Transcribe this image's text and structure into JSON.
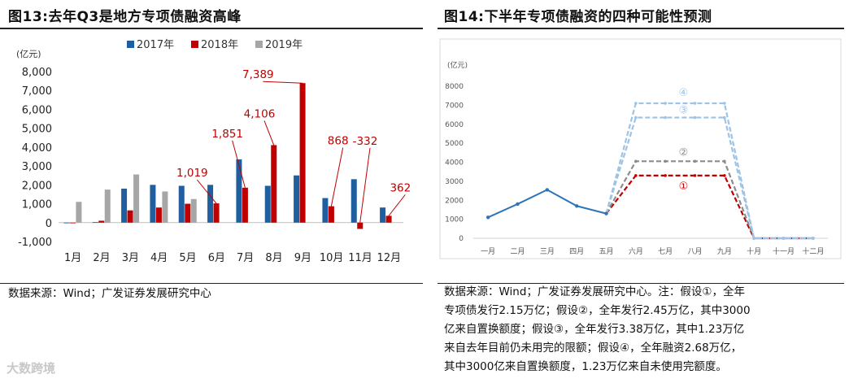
{
  "left": {
    "title": "图13:去年Q3是地方专项债融资高峰",
    "source": "数据来源：Wind；广发证券发展研究中心",
    "chart_data": {
      "type": "bar",
      "title": "图13:去年Q3是地方专项债融资高峰",
      "ylabel": "(亿元)",
      "ylim": [
        -1000,
        8000
      ],
      "yticks": [
        "8,000",
        "7,000",
        "6,000",
        "5,000",
        "4,000",
        "3,000",
        "2,000",
        "1,000",
        "0",
        "-1,000"
      ],
      "legend_position": "top",
      "categories": [
        "1月",
        "2月",
        "3月",
        "4月",
        "5月",
        "6月",
        "7月",
        "8月",
        "9月",
        "10月",
        "11月",
        "12月"
      ],
      "series": [
        {
          "name": "2017年",
          "color": "#1f5fa0",
          "values": [
            0,
            30,
            1800,
            2000,
            1950,
            2000,
            3350,
            1950,
            2500,
            1300,
            2300,
            800
          ]
        },
        {
          "name": "2018年",
          "color": "#c00000",
          "values": [
            0,
            100,
            650,
            800,
            1000,
            1019,
            1851,
            4106,
            7389,
            868,
            -332,
            362
          ]
        },
        {
          "name": "2019年",
          "color": "#a6a6a6",
          "values": [
            1100,
            1750,
            2550,
            1650,
            1250,
            null,
            null,
            null,
            null,
            null,
            null,
            null
          ]
        }
      ],
      "annotations": [
        {
          "category": "6月",
          "text": "1,019"
        },
        {
          "category": "7月",
          "text": "1,851"
        },
        {
          "category": "8月",
          "text": "4,106"
        },
        {
          "category": "9月",
          "text": "7,389"
        },
        {
          "category": "10月",
          "text": "868"
        },
        {
          "category": "11月",
          "text": "-332"
        },
        {
          "category": "12月",
          "text": "362"
        }
      ]
    }
  },
  "right": {
    "title": "图14:下半年专项债融资的四种可能性预测",
    "source_lines": [
      "数据来源：Wind；广发证券发展研究中心。注：假设①，全年",
      "专项债发行2.15万亿；假设②，全年发行2.45万亿，其中3000",
      "亿来自置换额度；假设③，全年发行3.38万亿，其中1.23万亿",
      "来自去年目前仍未用完的限额；假设④，全年融资2.68万亿，",
      "其中3000亿来自置换额度，1.23万亿来自未使用完额度。"
    ],
    "chart_data": {
      "type": "line",
      "ylabel": "(亿元)",
      "ylim": [
        0,
        8000
      ],
      "yticks": [
        "8000",
        "7000",
        "6000",
        "5000",
        "4000",
        "3000",
        "2000",
        "1000",
        "0"
      ],
      "categories": [
        "一月",
        "二月",
        "三月",
        "四月",
        "五月",
        "六月",
        "七月",
        "八月",
        "九月",
        "十月",
        "十一月",
        "十二月"
      ],
      "actual": {
        "color": "#2e75b6",
        "values": [
          1100,
          1800,
          2550,
          1700,
          1300,
          null,
          null,
          null,
          null,
          null,
          null,
          null
        ]
      },
      "scenarios": [
        {
          "name": "①",
          "color": "#c00000",
          "values": [
            null,
            null,
            null,
            null,
            1300,
            3300,
            3300,
            3300,
            3300,
            0,
            0,
            0
          ]
        },
        {
          "name": "②",
          "color": "#8c8c8c",
          "values": [
            null,
            null,
            null,
            null,
            1300,
            4050,
            4050,
            4050,
            4050,
            0,
            0,
            0
          ]
        },
        {
          "name": "③",
          "color": "#9dc3e6",
          "values": [
            null,
            null,
            null,
            null,
            1300,
            6350,
            6350,
            6350,
            6350,
            0,
            0,
            0
          ]
        },
        {
          "name": "④",
          "color": "#9dc3e6",
          "values": [
            null,
            null,
            null,
            null,
            1300,
            7100,
            7100,
            7100,
            7100,
            0,
            0,
            0
          ]
        }
      ]
    }
  },
  "watermark": "大数跨境"
}
